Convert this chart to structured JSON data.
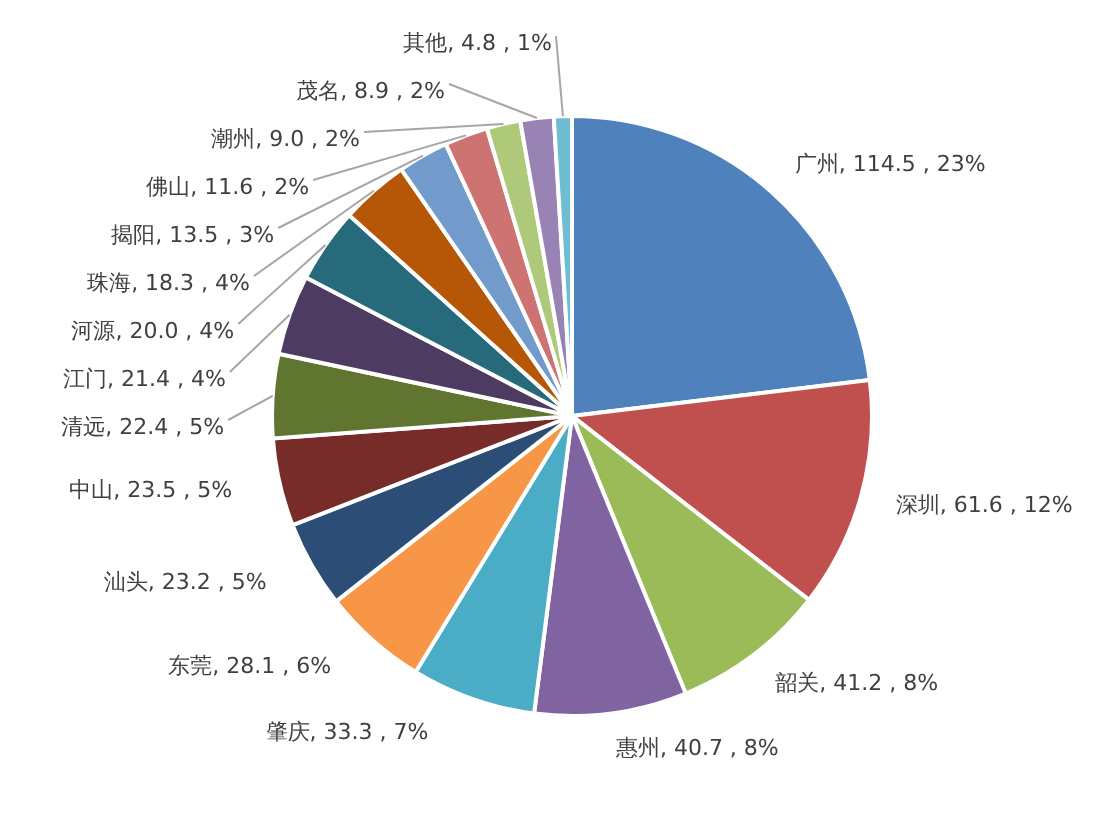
{
  "chart_data": {
    "type": "pie",
    "categories": [
      "广州",
      "深圳",
      "韶关",
      "惠州",
      "肇庆",
      "东莞",
      "汕头",
      "中山",
      "清远",
      "江门",
      "河源",
      "珠海",
      "揭阳",
      "佛山",
      "潮州",
      "茂名",
      "其他"
    ],
    "values": [
      114.5,
      61.6,
      41.2,
      40.7,
      33.3,
      28.1,
      23.2,
      23.5,
      22.4,
      21.4,
      20.0,
      18.3,
      13.5,
      11.6,
      9.0,
      8.9,
      4.8
    ],
    "value_labels": [
      "114.5 , 23%",
      "61.6 , 12%",
      "41.2 , 8%",
      "40.7 , 8%",
      "33.3 , 7%",
      "28.1 , 6%",
      "23.2 , 5%",
      "23.5 , 5%",
      "22.4 , 5%",
      "21.4 , 4%",
      "20.0 , 4%",
      "18.3 , 4%",
      "13.5 , 3%",
      "11.6 , 2%",
      "9.0 , 2%",
      "8.9 , 2%",
      "4.8 , 1%"
    ],
    "colors": [
      "#4f81bd",
      "#c0504d",
      "#9bbb59",
      "#8064a2",
      "#4bacc6",
      "#f79646",
      "#2c4d75",
      "#772c2a",
      "#5f7530",
      "#4d3b62",
      "#276a7c",
      "#b65708",
      "#729aca",
      "#cd7371",
      "#afc97a",
      "#9983b5",
      "#6fbdd1"
    ]
  }
}
